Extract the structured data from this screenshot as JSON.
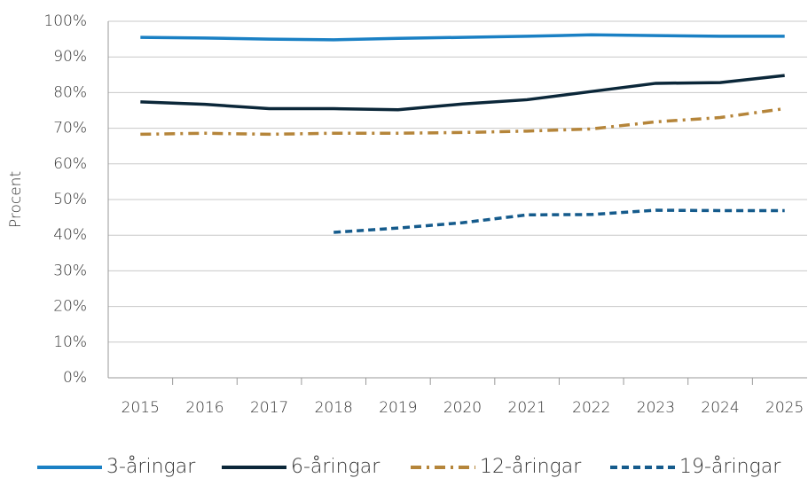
{
  "chart_data": {
    "type": "line",
    "y_label": "Procent",
    "categories": [
      "2015",
      "2016",
      "2017",
      "2018",
      "2019",
      "2020",
      "2021",
      "2022",
      "2023",
      "2024",
      "2025"
    ],
    "series": [
      {
        "name": "3-åringar",
        "color": "#1a80c4",
        "dash": "solid",
        "values": [
          95.5,
          95.3,
          95.0,
          94.8,
          95.2,
          95.5,
          95.8,
          96.2,
          96.0,
          95.8,
          95.8
        ]
      },
      {
        "name": "6-åringar",
        "color": "#0b2739",
        "dash": "solid",
        "values": [
          77.4,
          76.7,
          75.5,
          75.5,
          75.2,
          76.8,
          78.0,
          80.3,
          82.6,
          82.8,
          84.8
        ]
      },
      {
        "name": "12-åringar",
        "color": "#b5853a",
        "dash": "dashdot",
        "values": [
          68.3,
          68.6,
          68.3,
          68.6,
          68.6,
          68.8,
          69.2,
          69.8,
          71.8,
          73.0,
          75.5
        ]
      },
      {
        "name": "19-åringar",
        "color": "#155b8c",
        "dash": "dashed",
        "values": [
          null,
          null,
          null,
          40.8,
          42.0,
          43.5,
          45.7,
          45.8,
          47.0,
          46.9,
          46.9
        ]
      }
    ],
    "ylim": [
      0,
      100
    ],
    "yticks": [
      {
        "value": 0,
        "label": "0%"
      },
      {
        "value": 10,
        "label": "10%"
      },
      {
        "value": 20,
        "label": "20%"
      },
      {
        "value": 30,
        "label": "30%"
      },
      {
        "value": 40,
        "label": "40%"
      },
      {
        "value": 50,
        "label": "50%"
      },
      {
        "value": 60,
        "label": "60%"
      },
      {
        "value": 70,
        "label": "70%"
      },
      {
        "value": 80,
        "label": "80%"
      },
      {
        "value": 90,
        "label": "90%"
      },
      {
        "value": 100,
        "label": "100%"
      }
    ],
    "grid": true,
    "legend": "bottom"
  }
}
